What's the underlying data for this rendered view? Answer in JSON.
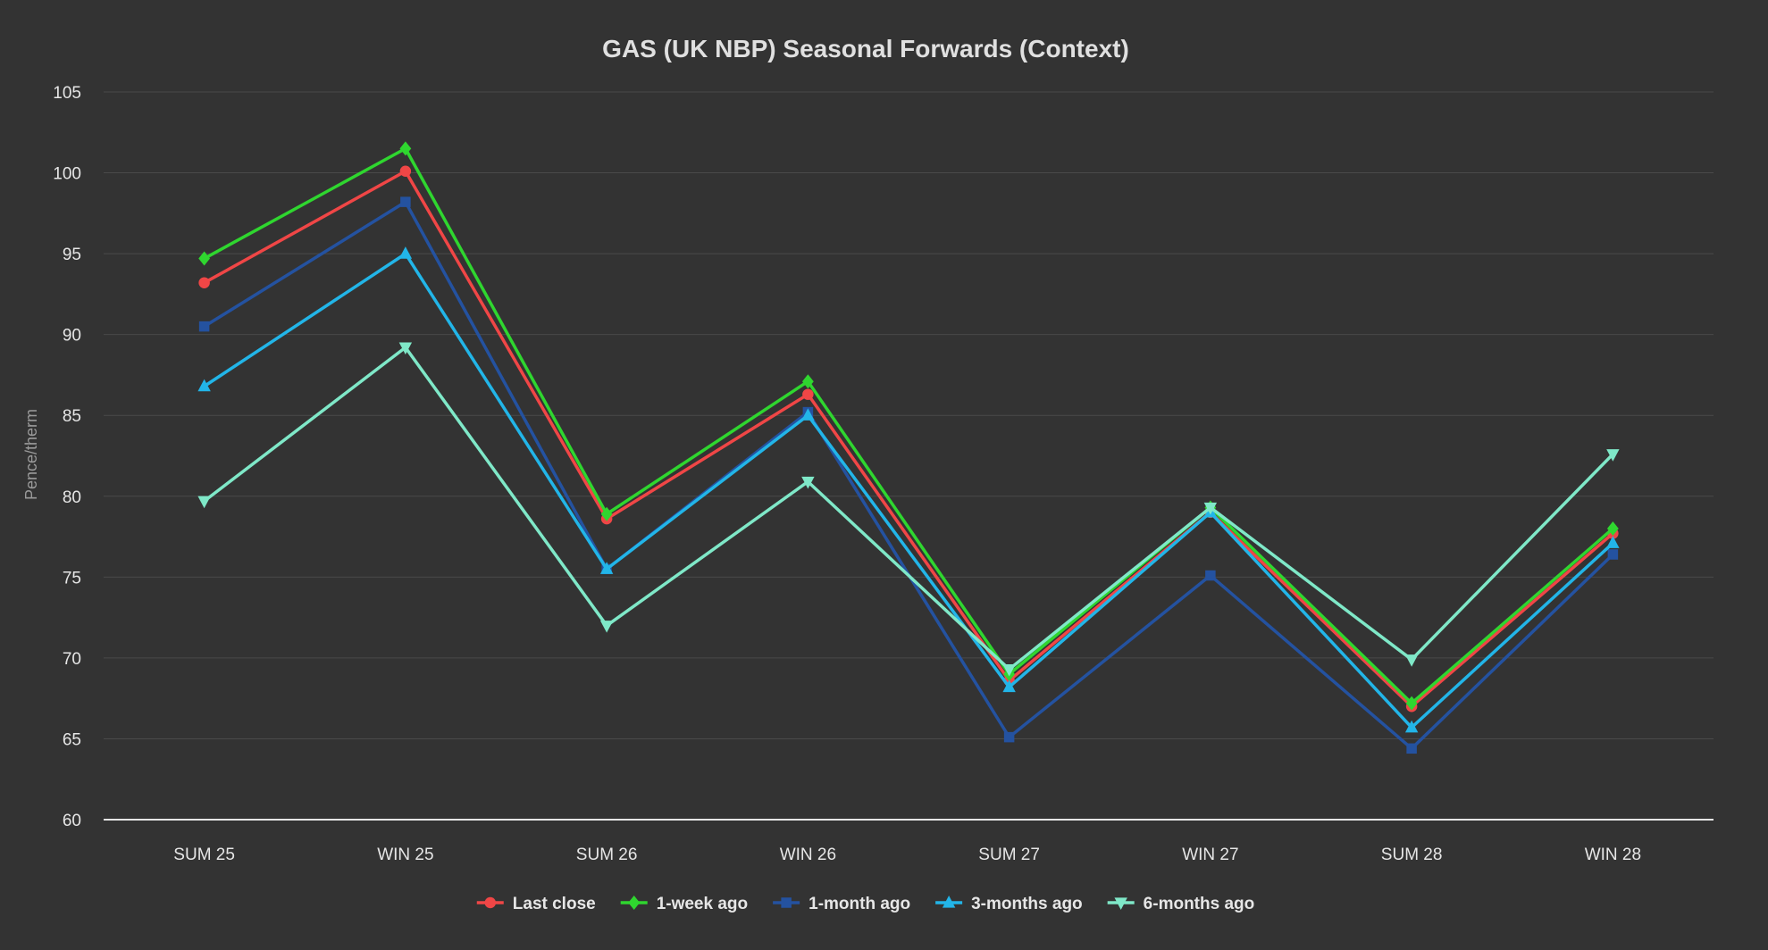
{
  "chart_data": {
    "type": "line",
    "title": "GAS (UK NBP) Seasonal Forwards (Context)",
    "xlabel": "",
    "ylabel": "Pence/therm",
    "ylim": [
      60,
      105
    ],
    "yticks": [
      60,
      65,
      70,
      75,
      80,
      85,
      90,
      95,
      100,
      105
    ],
    "grid": true,
    "legend_position": "bottom",
    "categories": [
      "SUM 25",
      "WIN 25",
      "SUM 26",
      "WIN 26",
      "SUM 27",
      "WIN 27",
      "SUM 28",
      "WIN 28"
    ],
    "series": [
      {
        "name": "Last close",
        "color": "#f04646",
        "marker": "circle",
        "values": [
          93.2,
          100.1,
          78.6,
          86.3,
          68.6,
          79.0,
          67.0,
          77.7
        ]
      },
      {
        "name": "1-week ago",
        "color": "#2fd62f",
        "marker": "diamond",
        "values": [
          94.7,
          101.5,
          78.9,
          87.1,
          69.0,
          79.3,
          67.2,
          78.0
        ]
      },
      {
        "name": "1-month ago",
        "color": "#2452a0",
        "marker": "square",
        "values": [
          90.5,
          98.2,
          75.5,
          85.2,
          65.1,
          75.1,
          64.4,
          76.4
        ]
      },
      {
        "name": "3-months ago",
        "color": "#22b5e8",
        "marker": "triangle-up",
        "values": [
          86.8,
          95.0,
          75.5,
          85.0,
          68.2,
          79.0,
          65.7,
          77.1
        ]
      },
      {
        "name": "6-months ago",
        "color": "#7fe8c8",
        "marker": "triangle-down",
        "values": [
          79.7,
          89.2,
          72.0,
          80.9,
          69.3,
          79.3,
          69.9,
          82.6
        ]
      }
    ]
  }
}
